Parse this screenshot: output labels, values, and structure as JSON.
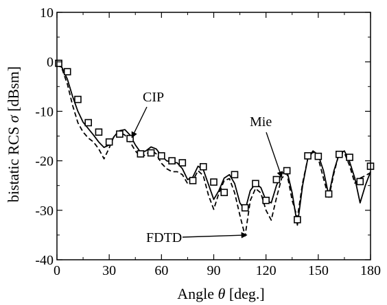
{
  "chart_data": {
    "type": "line",
    "xlabel": "Angle θ [deg.]",
    "xlabel_prefix": "Angle ",
    "xlabel_symbol": "θ",
    "xlabel_suffix": " [deg.]",
    "ylabel": "bistatic RCS σ [dBsm]",
    "ylabel_prefix": "bistatic RCS ",
    "ylabel_symbol": "σ",
    "ylabel_suffix": " [dBsm]",
    "xlim": [
      0,
      180
    ],
    "ylim": [
      -40,
      10
    ],
    "xticks": [
      0,
      30,
      60,
      90,
      120,
      150,
      180
    ],
    "yticks": [
      -40,
      -30,
      -20,
      -10,
      0,
      10
    ],
    "xtick_labels": [
      "0",
      "30",
      "60",
      "90",
      "120",
      "150",
      "180"
    ],
    "ytick_labels": [
      "-40",
      "-30",
      "-20",
      "-10",
      "0",
      "10"
    ],
    "grid": false,
    "series": [
      {
        "name": "Mie",
        "style": "solid",
        "x": [
          0,
          3,
          6,
          9,
          12,
          15,
          18,
          21,
          24,
          27,
          30,
          33,
          36,
          39,
          42,
          45,
          48,
          51,
          54,
          57,
          60,
          63,
          66,
          69,
          72,
          75,
          78,
          81,
          84,
          87,
          90,
          93,
          96,
          99,
          102,
          105,
          108,
          111,
          114,
          117,
          120,
          123,
          126,
          129,
          132,
          135,
          138,
          141,
          144,
          147,
          150,
          153,
          156,
          159,
          162,
          165,
          168,
          171,
          174,
          177,
          180
        ],
        "y": [
          -0.3,
          -1.2,
          -3.5,
          -7.0,
          -10.0,
          -12.2,
          -13.5,
          -14.8,
          -16.2,
          -17.3,
          -16.8,
          -15.0,
          -13.9,
          -13.7,
          -14.8,
          -16.8,
          -18.3,
          -18.0,
          -17.2,
          -17.6,
          -19.0,
          -20.0,
          -20.3,
          -20.4,
          -21.6,
          -23.8,
          -23.3,
          -21.1,
          -21.8,
          -24.8,
          -27.8,
          -26.0,
          -23.5,
          -22.8,
          -24.6,
          -28.5,
          -30.0,
          -26.0,
          -24.6,
          -25.4,
          -28.0,
          -28.5,
          -25.0,
          -22.6,
          -22.0,
          -26.5,
          -33.0,
          -25.0,
          -19.5,
          -18.0,
          -18.8,
          -22.0,
          -27.0,
          -22.0,
          -18.6,
          -18.0,
          -20.2,
          -23.5,
          -28.5,
          -25.0,
          -22.2
        ]
      },
      {
        "name": "CIP",
        "style": "dashed",
        "x": [
          0,
          3,
          6,
          9,
          12,
          15,
          18,
          21,
          24,
          27,
          30,
          33,
          36,
          39,
          42,
          45,
          48,
          51,
          54,
          57,
          60,
          63,
          66,
          69,
          72,
          75,
          78,
          81,
          84,
          87,
          90,
          93,
          96,
          99,
          102,
          105,
          108,
          111,
          114,
          117,
          120,
          123,
          126,
          129,
          132,
          135,
          138,
          141,
          144,
          147,
          150,
          153,
          156,
          159,
          162,
          165,
          168,
          171,
          174,
          177,
          180
        ],
        "y": [
          -0.3,
          -1.5,
          -4.5,
          -8.8,
          -12.3,
          -14.2,
          -15.4,
          -16.2,
          -17.6,
          -19.6,
          -17.4,
          -14.8,
          -14.2,
          -14.8,
          -16.2,
          -18.0,
          -19.2,
          -18.8,
          -17.8,
          -18.6,
          -20.5,
          -21.6,
          -22.2,
          -22.2,
          -22.8,
          -24.6,
          -24.0,
          -22.0,
          -23.0,
          -27.0,
          -29.8,
          -26.5,
          -24.0,
          -23.6,
          -26.5,
          -31.0,
          -35.2,
          -28.0,
          -25.6,
          -26.5,
          -30.0,
          -32.0,
          -27.5,
          -23.5,
          -22.5,
          -28.0,
          -31.5,
          -24.5,
          -19.5,
          -18.2,
          -19.5,
          -23.5,
          -27.5,
          -22.5,
          -18.4,
          -18.4,
          -21.0,
          -24.5,
          -23.5,
          -23.0,
          -22.4
        ]
      },
      {
        "name": "FDTD",
        "style": "markers",
        "marker": "square",
        "x": [
          1,
          6,
          12,
          18,
          24,
          30,
          36,
          42,
          48,
          54,
          60,
          66,
          72,
          78,
          84,
          90,
          96,
          102,
          108,
          114,
          120,
          126,
          132,
          138,
          144,
          150,
          156,
          162,
          168,
          174,
          180
        ],
        "y": [
          -0.3,
          -2.0,
          -7.6,
          -12.3,
          -14.2,
          -16.2,
          -14.6,
          -15.5,
          -18.6,
          -18.4,
          -19.0,
          -20.0,
          -20.4,
          -24.0,
          -21.2,
          -24.3,
          -26.4,
          -22.8,
          -29.5,
          -24.6,
          -28.0,
          -23.8,
          -22.0,
          -31.9,
          -19.0,
          -19.1,
          -26.7,
          -18.7,
          -19.3,
          -24.2,
          -21.1
        ]
      }
    ],
    "annotations": [
      {
        "text": "CIP",
        "x": 43,
        "y": -15.3
      },
      {
        "text": "Mie",
        "x": 129,
        "y": -23.3
      },
      {
        "text": "FDTD",
        "x": 109,
        "y": -35.0
      }
    ]
  }
}
